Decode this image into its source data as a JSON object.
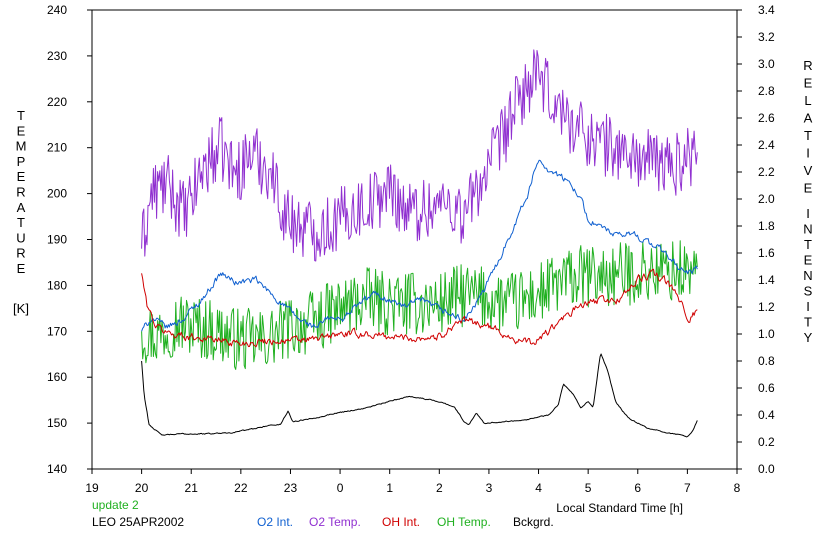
{
  "chart_data": {
    "type": "line",
    "left_axis": {
      "label_letters": [
        "T",
        "E",
        "M",
        "P",
        "E",
        "R",
        "A",
        "T",
        "U",
        "R",
        "E"
      ],
      "unit": "[K]",
      "ylim": [
        140,
        240
      ],
      "ticks": [
        "140",
        "150",
        "160",
        "170",
        "180",
        "190",
        "200",
        "210",
        "220",
        "230",
        "240"
      ]
    },
    "right_axis": {
      "label_letters_1": [
        "R",
        "E",
        "L",
        "A",
        "T",
        "I",
        "V",
        "E"
      ],
      "label_letters_2": [
        "I",
        "N",
        "T",
        "E",
        "N",
        "S",
        "I",
        "T",
        "Y"
      ],
      "ylim": [
        0.0,
        3.4
      ],
      "ticks": [
        "0.0",
        "0.2",
        "0.4",
        "0.6",
        "0.8",
        "1.0",
        "1.2",
        "1.4",
        "1.6",
        "1.8",
        "2.0",
        "2.2",
        "2.4",
        "2.6",
        "2.8",
        "3.0",
        "3.2",
        "3.4"
      ]
    },
    "x_axis": {
      "label": "Local Standard Time [h]",
      "xlim": [
        19,
        32
      ],
      "ticks": [
        "19",
        "20",
        "21",
        "22",
        "23",
        "0",
        "1",
        "2",
        "3",
        "4",
        "5",
        "6",
        "7",
        "8"
      ]
    },
    "series": [
      {
        "name": "O2 Int.",
        "color": "#1060d0",
        "axis": "right",
        "anchors": [
          [
            20.0,
            1.02
          ],
          [
            20.2,
            1.12
          ],
          [
            20.5,
            1.05
          ],
          [
            20.8,
            1.1
          ],
          [
            21.2,
            1.25
          ],
          [
            21.6,
            1.45
          ],
          [
            21.9,
            1.38
          ],
          [
            22.3,
            1.4
          ],
          [
            22.6,
            1.3
          ],
          [
            22.9,
            1.2
          ],
          [
            23.2,
            1.1
          ],
          [
            23.5,
            1.05
          ],
          [
            23.8,
            1.12
          ],
          [
            24.0,
            1.1
          ],
          [
            24.3,
            1.2
          ],
          [
            24.7,
            1.3
          ],
          [
            25.0,
            1.25
          ],
          [
            25.3,
            1.2
          ],
          [
            25.6,
            1.25
          ],
          [
            25.9,
            1.2
          ],
          [
            26.2,
            1.15
          ],
          [
            26.5,
            1.1
          ],
          [
            26.8,
            1.25
          ],
          [
            27.2,
            1.55
          ],
          [
            27.5,
            1.8
          ],
          [
            27.8,
            2.05
          ],
          [
            28.0,
            2.3
          ],
          [
            28.2,
            2.22
          ],
          [
            28.5,
            2.15
          ],
          [
            28.8,
            2.05
          ],
          [
            29.0,
            1.85
          ],
          [
            29.3,
            1.78
          ],
          [
            29.6,
            1.72
          ],
          [
            29.9,
            1.75
          ],
          [
            30.2,
            1.68
          ],
          [
            30.5,
            1.62
          ],
          [
            30.8,
            1.5
          ],
          [
            31.0,
            1.45
          ],
          [
            31.2,
            1.48
          ]
        ],
        "noise": 0.035
      },
      {
        "name": "O2 Temp.",
        "color": "#9030d0",
        "axis": "left",
        "anchors": [
          [
            20.0,
            188
          ],
          [
            20.2,
            200
          ],
          [
            20.5,
            202
          ],
          [
            20.9,
            195
          ],
          [
            21.2,
            205
          ],
          [
            21.6,
            210
          ],
          [
            21.9,
            204
          ],
          [
            22.2,
            209
          ],
          [
            22.6,
            205
          ],
          [
            22.9,
            195
          ],
          [
            23.2,
            193
          ],
          [
            23.5,
            192
          ],
          [
            23.8,
            193
          ],
          [
            24.2,
            196
          ],
          [
            24.6,
            198
          ],
          [
            25.0,
            201
          ],
          [
            25.4,
            196
          ],
          [
            25.8,
            197
          ],
          [
            26.2,
            198
          ],
          [
            26.5,
            195
          ],
          [
            26.8,
            202
          ],
          [
            27.2,
            210
          ],
          [
            27.5,
            218
          ],
          [
            27.8,
            224
          ],
          [
            28.0,
            225
          ],
          [
            28.3,
            220
          ],
          [
            28.7,
            215
          ],
          [
            29.1,
            212
          ],
          [
            29.5,
            210
          ],
          [
            29.9,
            208
          ],
          [
            30.3,
            207
          ],
          [
            30.7,
            206
          ],
          [
            31.0,
            208
          ],
          [
            31.2,
            209
          ]
        ],
        "noise": 7
      },
      {
        "name": "OH Int.",
        "color": "#d00000",
        "axis": "right",
        "anchors": [
          [
            20.0,
            1.45
          ],
          [
            20.1,
            1.22
          ],
          [
            20.3,
            1.05
          ],
          [
            20.6,
            1.0
          ],
          [
            21.0,
            0.98
          ],
          [
            21.5,
            0.96
          ],
          [
            22.0,
            0.93
          ],
          [
            22.5,
            0.95
          ],
          [
            23.0,
            0.95
          ],
          [
            23.5,
            0.96
          ],
          [
            24.0,
            1.0
          ],
          [
            24.5,
            1.0
          ],
          [
            25.0,
            0.98
          ],
          [
            25.5,
            0.97
          ],
          [
            26.0,
            0.98
          ],
          [
            26.4,
            1.1
          ],
          [
            26.8,
            1.08
          ],
          [
            27.2,
            1.02
          ],
          [
            27.6,
            0.95
          ],
          [
            27.9,
            0.93
          ],
          [
            28.3,
            1.05
          ],
          [
            28.8,
            1.2
          ],
          [
            29.2,
            1.25
          ],
          [
            29.6,
            1.25
          ],
          [
            30.0,
            1.4
          ],
          [
            30.3,
            1.45
          ],
          [
            30.6,
            1.38
          ],
          [
            30.9,
            1.22
          ],
          [
            31.0,
            1.1
          ],
          [
            31.2,
            1.18
          ]
        ],
        "noise": 0.04
      },
      {
        "name": "OH Temp.",
        "color": "#20b020",
        "axis": "left",
        "anchors": [
          [
            20.0,
            170
          ],
          [
            20.3,
            169
          ],
          [
            20.7,
            172
          ],
          [
            21.1,
            171
          ],
          [
            21.5,
            170
          ],
          [
            22.0,
            168
          ],
          [
            22.5,
            168
          ],
          [
            23.0,
            171
          ],
          [
            23.5,
            172
          ],
          [
            24.0,
            175
          ],
          [
            24.5,
            177
          ],
          [
            25.0,
            176
          ],
          [
            25.5,
            176
          ],
          [
            26.0,
            176
          ],
          [
            26.5,
            178
          ],
          [
            27.0,
            177
          ],
          [
            27.5,
            176
          ],
          [
            28.0,
            178
          ],
          [
            28.5,
            181
          ],
          [
            29.0,
            182
          ],
          [
            29.5,
            182
          ],
          [
            30.0,
            183
          ],
          [
            30.5,
            183
          ],
          [
            31.0,
            183
          ],
          [
            31.2,
            184
          ]
        ],
        "noise": 7
      },
      {
        "name": "Bckgrd.",
        "color": "#000000",
        "axis": "right",
        "anchors": [
          [
            20.0,
            0.8
          ],
          [
            20.05,
            0.55
          ],
          [
            20.15,
            0.33
          ],
          [
            20.4,
            0.25
          ],
          [
            20.8,
            0.26
          ],
          [
            21.3,
            0.26
          ],
          [
            21.8,
            0.27
          ],
          [
            22.3,
            0.3
          ],
          [
            22.5,
            0.32
          ],
          [
            22.8,
            0.33
          ],
          [
            22.95,
            0.43
          ],
          [
            23.05,
            0.35
          ],
          [
            23.5,
            0.38
          ],
          [
            24.0,
            0.42
          ],
          [
            24.5,
            0.45
          ],
          [
            25.0,
            0.5
          ],
          [
            25.4,
            0.54
          ],
          [
            25.7,
            0.52
          ],
          [
            26.0,
            0.5
          ],
          [
            26.3,
            0.46
          ],
          [
            26.5,
            0.35
          ],
          [
            26.6,
            0.33
          ],
          [
            26.75,
            0.42
          ],
          [
            26.9,
            0.34
          ],
          [
            27.3,
            0.35
          ],
          [
            27.8,
            0.37
          ],
          [
            28.2,
            0.4
          ],
          [
            28.4,
            0.48
          ],
          [
            28.5,
            0.63
          ],
          [
            28.7,
            0.55
          ],
          [
            28.85,
            0.45
          ],
          [
            29.0,
            0.5
          ],
          [
            29.1,
            0.45
          ],
          [
            29.25,
            0.86
          ],
          [
            29.4,
            0.72
          ],
          [
            29.55,
            0.5
          ],
          [
            29.8,
            0.38
          ],
          [
            30.2,
            0.3
          ],
          [
            30.6,
            0.27
          ],
          [
            31.0,
            0.24
          ],
          [
            31.1,
            0.28
          ],
          [
            31.2,
            0.36
          ]
        ],
        "noise": 0.006
      }
    ],
    "legend": [
      {
        "label": "O2 Int.",
        "color": "#1060d0"
      },
      {
        "label": "O2 Temp.",
        "color": "#9030d0"
      },
      {
        "label": "OH Int.",
        "color": "#d00000"
      },
      {
        "label": "OH Temp.",
        "color": "#20b020"
      },
      {
        "label": "Bckgrd.",
        "color": "#000000"
      }
    ]
  },
  "footer": {
    "update_text": "update 2",
    "update_color": "#20b020",
    "station_text": "LEO 25APR2002"
  }
}
